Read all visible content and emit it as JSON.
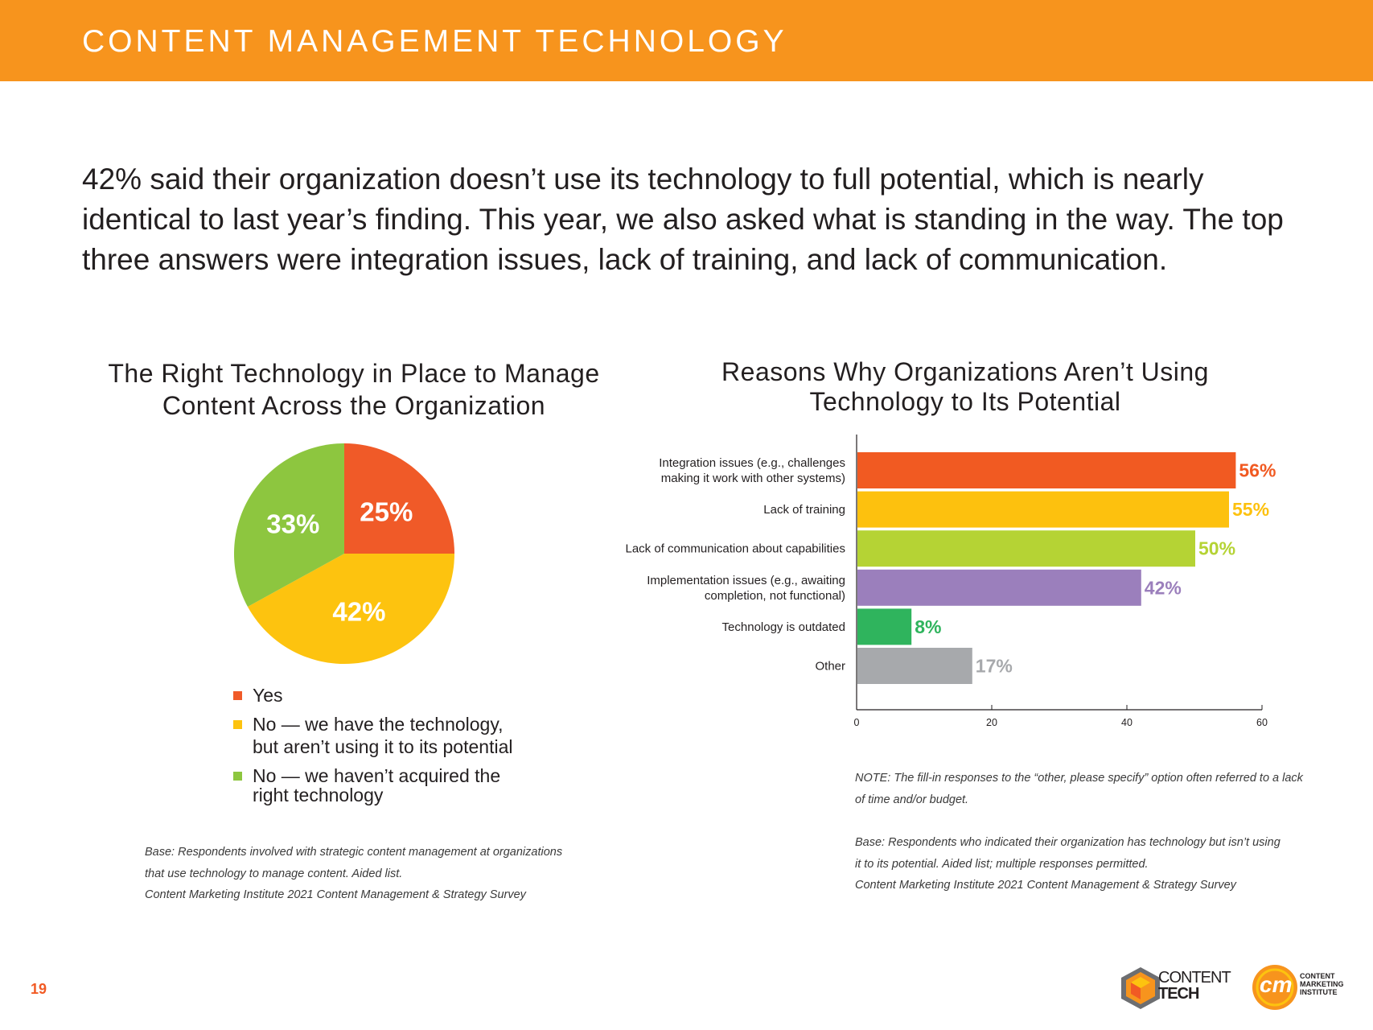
{
  "header": {
    "title": "CONTENT MANAGEMENT TECHNOLOGY"
  },
  "intro": "42% said their organization doesn’t use its technology to full potential, which is nearly identical to last year’s finding. This year, we also asked what is standing in the way. The top three answers were integration issues, lack of training, and lack of communication.",
  "page_number": "19",
  "pie_note": {
    "lines": [
      "Base: Respondents involved with strategic content management at organizations",
      "that use technology  to manage content. Aided list.",
      "Content Marketing Institute 2021 Content Management & Strategy Survey"
    ]
  },
  "bar_note": {
    "note_lines": [
      "NOTE: The fill-in responses to the “other, please specify” option often referred to a lack",
      "of time and/or budget."
    ],
    "base_lines": [
      "Base: Respondents who indicated their organization has technology but isn’t using",
      "it to its potential. Aided list; multiple responses permitted.",
      "Content Marketing Institute 2021 Content Management & Strategy Survey"
    ]
  },
  "logos": {
    "content_tech": [
      "CONTENT",
      "TECH"
    ],
    "cmi_mark": "cm",
    "cmi": [
      "CONTENT",
      "MARKETING",
      "INSTITUTE"
    ]
  },
  "colors": {
    "header": "#f7941d",
    "yes": "#f05a28",
    "no_not_using": "#fdc30f",
    "no_not_acquired": "#8dc63f",
    "bar_1": "#f15a22",
    "bar_2": "#fdc10e",
    "bar_3": "#b5d334",
    "bar_4": "#9b7fbc",
    "bar_5": "#2fb45d",
    "bar_6": "#a7a9ac"
  },
  "chart_data": [
    {
      "type": "pie",
      "title": "The Right Technology in Place to Manage Content Across the Organization",
      "title_lines": [
        "The Right Technology in Place to Manage",
        "Content Across the Organization"
      ],
      "slices": [
        {
          "label": "Yes",
          "label_lines": [
            "Yes"
          ],
          "value": 25,
          "display": "25%",
          "color": "#f05a28"
        },
        {
          "label": "No — we have the technology, but aren’t using it to its potential",
          "label_lines": [
            "No — we have the technology,",
            "but aren’t using it to its potential"
          ],
          "value": 42,
          "display": "42%",
          "color": "#fdc30f"
        },
        {
          "label": "No — we haven’t acquired the right technology",
          "label_lines": [
            "No — we haven’t acquired the",
            "right technology"
          ],
          "value": 33,
          "display": "33%",
          "color": "#8dc63f"
        }
      ],
      "legend": "bottom"
    },
    {
      "type": "bar",
      "orientation": "horizontal",
      "title": "Reasons Why Organizations Aren’t Using Technology to Its Potential",
      "title_lines": [
        "Reasons Why Organizations Aren’t Using",
        "Technology to Its Potential"
      ],
      "categories": [
        "Integration issues (e.g., challenges making it work with other systems)",
        "Lack of training",
        "Lack of communication about capabilities",
        "Implementation issues (e.g., awaiting completion, not functional)",
        "Technology is outdated",
        "Other"
      ],
      "category_lines": [
        [
          "Integration issues (e.g., challenges",
          "making it work with other systems)"
        ],
        [
          "Lack of training"
        ],
        [
          "Lack of communication about capabilities"
        ],
        [
          "Implementation issues (e.g., awaiting",
          "completion, not functional)"
        ],
        [
          "Technology is outdated"
        ],
        [
          "Other"
        ]
      ],
      "values": [
        56,
        55,
        50,
        42,
        8,
        17
      ],
      "data_labels": [
        "56%",
        "55%",
        "50%",
        "42%",
        "8%",
        "17%"
      ],
      "colors": [
        "#f15a22",
        "#fdc10e",
        "#b5d334",
        "#9b7fbc",
        "#2fb45d",
        "#a7a9ac"
      ],
      "xlim": [
        0,
        60
      ],
      "xticks": [
        0,
        20,
        40,
        60
      ],
      "xlabel": "",
      "ylabel": ""
    }
  ]
}
